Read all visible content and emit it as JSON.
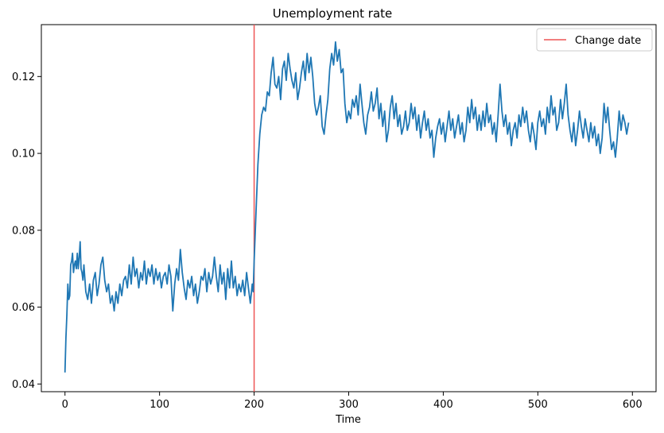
{
  "chart_data": {
    "type": "line",
    "title": "Unemployment rate",
    "xlabel": "Time",
    "ylabel": "",
    "xlim": [
      -25,
      625
    ],
    "ylim": [
      0.038,
      0.1335
    ],
    "x_ticks": [
      0,
      100,
      200,
      300,
      400,
      500,
      600
    ],
    "y_ticks": [
      0.04,
      0.06,
      0.08,
      0.1,
      0.12
    ],
    "y_tick_labels": [
      "0.04",
      "0.06",
      "0.08",
      "0.10",
      "0.12"
    ],
    "grid": false,
    "legend_position": "top-right",
    "vertical_lines": [
      {
        "x": 200,
        "name": "Change date",
        "color": "#ee5555"
      }
    ],
    "series": [
      {
        "color": "#1f77b4",
        "points": [
          [
            0,
            0.043
          ],
          [
            1,
            0.052
          ],
          [
            2,
            0.058
          ],
          [
            3,
            0.066
          ],
          [
            4,
            0.062
          ],
          [
            5,
            0.063
          ],
          [
            6,
            0.071
          ],
          [
            7,
            0.072
          ],
          [
            8,
            0.074
          ],
          [
            9,
            0.069
          ],
          [
            10,
            0.071
          ],
          [
            11,
            0.072
          ],
          [
            12,
            0.07
          ],
          [
            13,
            0.074
          ],
          [
            14,
            0.07
          ],
          [
            15,
            0.073
          ],
          [
            16,
            0.077
          ],
          [
            17,
            0.07
          ],
          [
            18,
            0.069
          ],
          [
            19,
            0.067
          ],
          [
            20,
            0.071
          ],
          [
            22,
            0.064
          ],
          [
            24,
            0.062
          ],
          [
            26,
            0.066
          ],
          [
            28,
            0.061
          ],
          [
            30,
            0.067
          ],
          [
            32,
            0.069
          ],
          [
            34,
            0.063
          ],
          [
            36,
            0.066
          ],
          [
            38,
            0.071
          ],
          [
            40,
            0.073
          ],
          [
            42,
            0.067
          ],
          [
            44,
            0.064
          ],
          [
            46,
            0.066
          ],
          [
            48,
            0.061
          ],
          [
            50,
            0.063
          ],
          [
            52,
            0.059
          ],
          [
            54,
            0.064
          ],
          [
            56,
            0.061
          ],
          [
            58,
            0.066
          ],
          [
            60,
            0.063
          ],
          [
            62,
            0.067
          ],
          [
            64,
            0.068
          ],
          [
            66,
            0.065
          ],
          [
            68,
            0.071
          ],
          [
            70,
            0.066
          ],
          [
            72,
            0.073
          ],
          [
            74,
            0.068
          ],
          [
            76,
            0.07
          ],
          [
            78,
            0.065
          ],
          [
            80,
            0.069
          ],
          [
            82,
            0.067
          ],
          [
            84,
            0.072
          ],
          [
            86,
            0.066
          ],
          [
            88,
            0.07
          ],
          [
            90,
            0.068
          ],
          [
            92,
            0.071
          ],
          [
            94,
            0.066
          ],
          [
            96,
            0.07
          ],
          [
            98,
            0.067
          ],
          [
            100,
            0.069
          ],
          [
            102,
            0.065
          ],
          [
            104,
            0.068
          ],
          [
            106,
            0.069
          ],
          [
            108,
            0.066
          ],
          [
            110,
            0.071
          ],
          [
            112,
            0.068
          ],
          [
            114,
            0.059
          ],
          [
            116,
            0.066
          ],
          [
            118,
            0.07
          ],
          [
            120,
            0.067
          ],
          [
            122,
            0.075
          ],
          [
            124,
            0.069
          ],
          [
            126,
            0.065
          ],
          [
            128,
            0.062
          ],
          [
            130,
            0.067
          ],
          [
            132,
            0.065
          ],
          [
            134,
            0.068
          ],
          [
            136,
            0.063
          ],
          [
            138,
            0.066
          ],
          [
            140,
            0.061
          ],
          [
            142,
            0.064
          ],
          [
            144,
            0.068
          ],
          [
            146,
            0.067
          ],
          [
            148,
            0.07
          ],
          [
            150,
            0.064
          ],
          [
            152,
            0.069
          ],
          [
            154,
            0.066
          ],
          [
            156,
            0.068
          ],
          [
            158,
            0.073
          ],
          [
            160,
            0.068
          ],
          [
            162,
            0.064
          ],
          [
            164,
            0.071
          ],
          [
            166,
            0.066
          ],
          [
            168,
            0.069
          ],
          [
            170,
            0.062
          ],
          [
            172,
            0.07
          ],
          [
            174,
            0.065
          ],
          [
            176,
            0.072
          ],
          [
            178,
            0.065
          ],
          [
            180,
            0.068
          ],
          [
            182,
            0.063
          ],
          [
            184,
            0.066
          ],
          [
            186,
            0.064
          ],
          [
            188,
            0.067
          ],
          [
            190,
            0.063
          ],
          [
            192,
            0.069
          ],
          [
            194,
            0.065
          ],
          [
            196,
            0.061
          ],
          [
            198,
            0.066
          ],
          [
            199,
            0.064
          ],
          [
            200,
            0.072
          ],
          [
            202,
            0.085
          ],
          [
            204,
            0.097
          ],
          [
            206,
            0.105
          ],
          [
            208,
            0.11
          ],
          [
            210,
            0.112
          ],
          [
            212,
            0.111
          ],
          [
            214,
            0.116
          ],
          [
            216,
            0.115
          ],
          [
            218,
            0.121
          ],
          [
            220,
            0.125
          ],
          [
            222,
            0.118
          ],
          [
            224,
            0.117
          ],
          [
            226,
            0.12
          ],
          [
            228,
            0.114
          ],
          [
            230,
            0.122
          ],
          [
            232,
            0.124
          ],
          [
            234,
            0.119
          ],
          [
            236,
            0.126
          ],
          [
            238,
            0.122
          ],
          [
            240,
            0.119
          ],
          [
            242,
            0.117
          ],
          [
            244,
            0.121
          ],
          [
            246,
            0.114
          ],
          [
            248,
            0.117
          ],
          [
            250,
            0.121
          ],
          [
            252,
            0.124
          ],
          [
            254,
            0.119
          ],
          [
            256,
            0.126
          ],
          [
            258,
            0.121
          ],
          [
            260,
            0.125
          ],
          [
            262,
            0.12
          ],
          [
            264,
            0.113
          ],
          [
            266,
            0.11
          ],
          [
            268,
            0.112
          ],
          [
            270,
            0.115
          ],
          [
            272,
            0.107
          ],
          [
            274,
            0.105
          ],
          [
            276,
            0.11
          ],
          [
            278,
            0.114
          ],
          [
            280,
            0.122
          ],
          [
            282,
            0.126
          ],
          [
            284,
            0.123
          ],
          [
            286,
            0.129
          ],
          [
            288,
            0.124
          ],
          [
            290,
            0.127
          ],
          [
            292,
            0.121
          ],
          [
            294,
            0.122
          ],
          [
            296,
            0.113
          ],
          [
            298,
            0.108
          ],
          [
            300,
            0.111
          ],
          [
            302,
            0.109
          ],
          [
            304,
            0.114
          ],
          [
            306,
            0.112
          ],
          [
            308,
            0.115
          ],
          [
            310,
            0.11
          ],
          [
            312,
            0.118
          ],
          [
            314,
            0.113
          ],
          [
            316,
            0.108
          ],
          [
            318,
            0.105
          ],
          [
            320,
            0.11
          ],
          [
            322,
            0.112
          ],
          [
            324,
            0.116
          ],
          [
            326,
            0.111
          ],
          [
            328,
            0.113
          ],
          [
            330,
            0.117
          ],
          [
            332,
            0.109
          ],
          [
            334,
            0.113
          ],
          [
            336,
            0.107
          ],
          [
            338,
            0.111
          ],
          [
            340,
            0.103
          ],
          [
            342,
            0.106
          ],
          [
            344,
            0.112
          ],
          [
            346,
            0.115
          ],
          [
            348,
            0.109
          ],
          [
            350,
            0.113
          ],
          [
            352,
            0.107
          ],
          [
            354,
            0.11
          ],
          [
            356,
            0.105
          ],
          [
            358,
            0.107
          ],
          [
            360,
            0.111
          ],
          [
            362,
            0.106
          ],
          [
            364,
            0.108
          ],
          [
            366,
            0.113
          ],
          [
            368,
            0.109
          ],
          [
            370,
            0.112
          ],
          [
            372,
            0.106
          ],
          [
            374,
            0.11
          ],
          [
            376,
            0.104
          ],
          [
            378,
            0.108
          ],
          [
            380,
            0.111
          ],
          [
            382,
            0.106
          ],
          [
            384,
            0.109
          ],
          [
            386,
            0.104
          ],
          [
            388,
            0.106
          ],
          [
            390,
            0.099
          ],
          [
            392,
            0.104
          ],
          [
            394,
            0.107
          ],
          [
            396,
            0.109
          ],
          [
            398,
            0.105
          ],
          [
            400,
            0.108
          ],
          [
            402,
            0.103
          ],
          [
            404,
            0.107
          ],
          [
            406,
            0.111
          ],
          [
            408,
            0.106
          ],
          [
            410,
            0.109
          ],
          [
            412,
            0.104
          ],
          [
            414,
            0.107
          ],
          [
            416,
            0.11
          ],
          [
            418,
            0.105
          ],
          [
            420,
            0.108
          ],
          [
            422,
            0.103
          ],
          [
            424,
            0.106
          ],
          [
            426,
            0.112
          ],
          [
            428,
            0.108
          ],
          [
            430,
            0.114
          ],
          [
            432,
            0.109
          ],
          [
            434,
            0.112
          ],
          [
            436,
            0.106
          ],
          [
            438,
            0.11
          ],
          [
            440,
            0.106
          ],
          [
            442,
            0.111
          ],
          [
            444,
            0.107
          ],
          [
            446,
            0.113
          ],
          [
            448,
            0.108
          ],
          [
            450,
            0.11
          ],
          [
            452,
            0.105
          ],
          [
            454,
            0.108
          ],
          [
            456,
            0.103
          ],
          [
            458,
            0.11
          ],
          [
            460,
            0.118
          ],
          [
            462,
            0.111
          ],
          [
            464,
            0.107
          ],
          [
            466,
            0.11
          ],
          [
            468,
            0.105
          ],
          [
            470,
            0.108
          ],
          [
            472,
            0.102
          ],
          [
            474,
            0.106
          ],
          [
            476,
            0.108
          ],
          [
            478,
            0.104
          ],
          [
            480,
            0.11
          ],
          [
            482,
            0.107
          ],
          [
            484,
            0.112
          ],
          [
            486,
            0.108
          ],
          [
            488,
            0.111
          ],
          [
            490,
            0.106
          ],
          [
            492,
            0.103
          ],
          [
            494,
            0.108
          ],
          [
            496,
            0.105
          ],
          [
            498,
            0.101
          ],
          [
            500,
            0.108
          ],
          [
            502,
            0.111
          ],
          [
            504,
            0.107
          ],
          [
            506,
            0.109
          ],
          [
            508,
            0.105
          ],
          [
            510,
            0.112
          ],
          [
            512,
            0.108
          ],
          [
            514,
            0.115
          ],
          [
            516,
            0.11
          ],
          [
            518,
            0.112
          ],
          [
            520,
            0.106
          ],
          [
            522,
            0.108
          ],
          [
            524,
            0.114
          ],
          [
            526,
            0.109
          ],
          [
            528,
            0.113
          ],
          [
            530,
            0.118
          ],
          [
            532,
            0.11
          ],
          [
            534,
            0.106
          ],
          [
            536,
            0.103
          ],
          [
            538,
            0.108
          ],
          [
            540,
            0.102
          ],
          [
            542,
            0.106
          ],
          [
            544,
            0.111
          ],
          [
            546,
            0.107
          ],
          [
            548,
            0.104
          ],
          [
            550,
            0.109
          ],
          [
            552,
            0.106
          ],
          [
            554,
            0.103
          ],
          [
            556,
            0.108
          ],
          [
            558,
            0.104
          ],
          [
            560,
            0.107
          ],
          [
            562,
            0.102
          ],
          [
            564,
            0.105
          ],
          [
            566,
            0.1
          ],
          [
            568,
            0.104
          ],
          [
            570,
            0.113
          ],
          [
            572,
            0.108
          ],
          [
            574,
            0.112
          ],
          [
            576,
            0.106
          ],
          [
            578,
            0.101
          ],
          [
            580,
            0.103
          ],
          [
            582,
            0.099
          ],
          [
            584,
            0.104
          ],
          [
            586,
            0.111
          ],
          [
            588,
            0.106
          ],
          [
            590,
            0.11
          ],
          [
            592,
            0.108
          ],
          [
            594,
            0.105
          ],
          [
            596,
            0.108
          ]
        ]
      }
    ]
  }
}
